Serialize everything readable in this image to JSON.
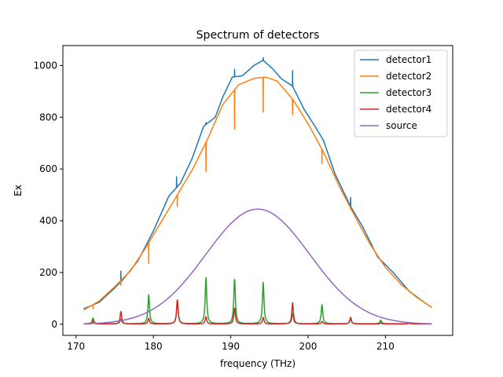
{
  "chart_data": {
    "type": "line",
    "title": "Spectrum of detectors",
    "xlabel": "frequency (THz)",
    "ylabel": "Ex",
    "xlim": [
      168.3,
      218.7
    ],
    "ylim": [
      -43,
      1077
    ],
    "xticks": [
      170,
      180,
      190,
      200,
      210
    ],
    "yticks": [
      0,
      200,
      400,
      600,
      800,
      1000
    ],
    "grid": false,
    "legend": "top-right",
    "series": [
      {
        "name": "detector1",
        "color": "#1f77b4",
        "points": [
          [
            171,
            60
          ],
          [
            173,
            85
          ],
          [
            175,
            140
          ],
          [
            176,
            170
          ],
          [
            178,
            245
          ],
          [
            180,
            360
          ],
          [
            182,
            495
          ],
          [
            183.5,
            545
          ],
          [
            185,
            640
          ],
          [
            186.5,
            765
          ],
          [
            188,
            800
          ],
          [
            189,
            880
          ],
          [
            190.2,
            955
          ],
          [
            191.5,
            960
          ],
          [
            193,
            1000
          ],
          [
            194.2,
            1020
          ],
          [
            195.5,
            985
          ],
          [
            196.5,
            950
          ],
          [
            198,
            920
          ],
          [
            199.5,
            830
          ],
          [
            201,
            760
          ],
          [
            202,
            710
          ],
          [
            203.5,
            580
          ],
          [
            205.5,
            455
          ],
          [
            207,
            380
          ],
          [
            209,
            260
          ],
          [
            211,
            200
          ],
          [
            213,
            130
          ],
          [
            215,
            85
          ],
          [
            216,
            65
          ]
        ],
        "spikes": [
          [
            175.8,
            205
          ],
          [
            183,
            570
          ],
          [
            186.8,
            780
          ],
          [
            190.5,
            985
          ],
          [
            194.2,
            1030
          ],
          [
            198,
            980
          ],
          [
            201.8,
            720
          ],
          [
            205.5,
            490
          ]
        ]
      },
      {
        "name": "detector2",
        "color": "#ff7f0e",
        "points": [
          [
            171,
            55
          ],
          [
            173,
            90
          ],
          [
            175,
            145
          ],
          [
            177,
            205
          ],
          [
            179,
            295
          ],
          [
            181,
            395
          ],
          [
            183,
            495
          ],
          [
            185,
            595
          ],
          [
            187,
            715
          ],
          [
            189,
            850
          ],
          [
            191,
            925
          ],
          [
            193,
            950
          ],
          [
            194.5,
            955
          ],
          [
            196,
            940
          ],
          [
            198,
            870
          ],
          [
            200,
            775
          ],
          [
            202,
            665
          ],
          [
            204,
            535
          ],
          [
            206,
            420
          ],
          [
            208,
            310
          ],
          [
            210,
            220
          ],
          [
            212,
            155
          ],
          [
            214,
            105
          ],
          [
            216,
            65
          ]
        ],
        "spikes": [
          [
            172.2,
            60
          ],
          [
            175.8,
            150
          ],
          [
            179.4,
            235
          ],
          [
            183.1,
            455
          ],
          [
            186.8,
            590
          ],
          [
            190.5,
            755
          ],
          [
            194.2,
            820
          ],
          [
            198,
            810
          ],
          [
            201.8,
            620
          ],
          [
            205.5,
            445
          ],
          [
            209.4,
            245
          ],
          [
            213.1,
            125
          ]
        ]
      },
      {
        "name": "detector3",
        "color": "#2ca02c",
        "baseline": 2,
        "peaks": [
          [
            172.2,
            22
          ],
          [
            175.8,
            18
          ],
          [
            179.4,
            112
          ],
          [
            183.1,
            90
          ],
          [
            186.8,
            178
          ],
          [
            190.5,
            175
          ],
          [
            194.2,
            160
          ],
          [
            198,
            40
          ],
          [
            201.8,
            74
          ],
          [
            205.5,
            18
          ],
          [
            209.4,
            14
          ],
          [
            213.1,
            4
          ]
        ]
      },
      {
        "name": "detector4",
        "color": "#d62728",
        "baseline": 1,
        "peaks": [
          [
            172.2,
            12
          ],
          [
            175.8,
            48
          ],
          [
            179.4,
            22
          ],
          [
            183.1,
            95
          ],
          [
            186.8,
            28
          ],
          [
            190.5,
            62
          ],
          [
            194.2,
            25
          ],
          [
            198,
            82
          ],
          [
            201.8,
            10
          ],
          [
            205.5,
            26
          ],
          [
            209.4,
            5
          ],
          [
            213.1,
            4
          ]
        ]
      },
      {
        "name": "source",
        "color": "#9467bd",
        "center": 193.5,
        "amplitude": 445,
        "x": [
          171,
          216
        ]
      }
    ]
  }
}
